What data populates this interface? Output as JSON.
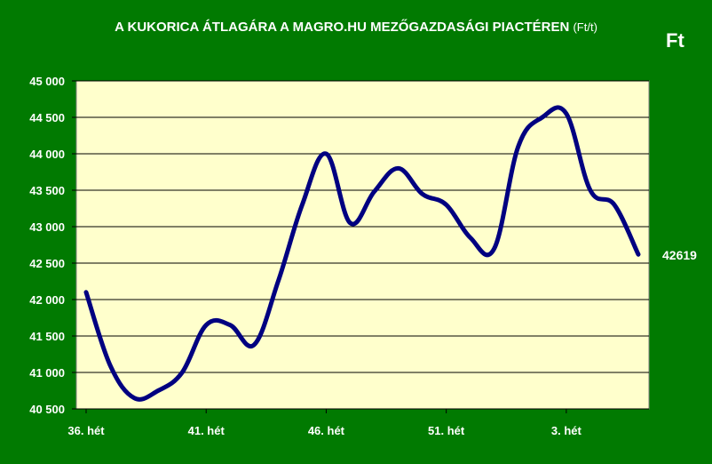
{
  "chart_data": {
    "type": "line",
    "title": "A KUKORICA ÁTLAGÁRA A MAGRO.HU MEZŐGAZDASÁGI PIACTÉREN",
    "title_unit": "(Ft/t)",
    "currency_label": "Ft",
    "last_value_label": "42619",
    "ylim": [
      40500,
      45000
    ],
    "y_ticks": [
      {
        "value": 40500,
        "label": "40 500"
      },
      {
        "value": 41000,
        "label": "41 000"
      },
      {
        "value": 41500,
        "label": "41 500"
      },
      {
        "value": 42000,
        "label": "42 000"
      },
      {
        "value": 42500,
        "label": "42 500"
      },
      {
        "value": 43000,
        "label": "43 000"
      },
      {
        "value": 43500,
        "label": "43 500"
      },
      {
        "value": 44000,
        "label": "44 000"
      },
      {
        "value": 44500,
        "label": "44 500"
      },
      {
        "value": 45000,
        "label": "45 000"
      }
    ],
    "x_ticks": [
      {
        "index": 0,
        "label": "36. hét"
      },
      {
        "index": 5,
        "label": "41. hét"
      },
      {
        "index": 10,
        "label": "46. hét"
      },
      {
        "index": 15,
        "label": "51. hét"
      },
      {
        "index": 20,
        "label": "3. hét"
      }
    ],
    "grid": true,
    "line_color": "#000080",
    "plot_background": "#ffffcc",
    "values": [
      42100,
      41100,
      40650,
      40750,
      41000,
      41650,
      41650,
      41380,
      42250,
      43300,
      44000,
      43050,
      43480,
      43800,
      43450,
      43300,
      42850,
      42700,
      44100,
      44500,
      44550,
      43500,
      43300,
      42619
    ]
  }
}
